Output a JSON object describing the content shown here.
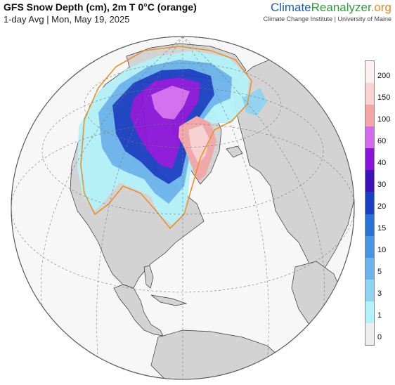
{
  "header": {
    "title": "GFS Snow Depth (cm), 2m T 0°C (orange)",
    "subtitle": "1-day Avg | Mon, May 19, 2025"
  },
  "brand": {
    "name_part1": "Climate",
    "name_part2": "Reanalyzer",
    "name_part3": ".org",
    "institution": "Climate Change Institute | University of Maine"
  },
  "legend": {
    "bins": [
      {
        "label": "0",
        "color": "#eeeeee"
      },
      {
        "label": "1",
        "color": "#b3f2f8"
      },
      {
        "label": "3",
        "color": "#8fd4f2"
      },
      {
        "label": "5",
        "color": "#6bb5ec"
      },
      {
        "label": "10",
        "color": "#4795e4"
      },
      {
        "label": "15",
        "color": "#2a71d6"
      },
      {
        "label": "20",
        "color": "#1a3fc2"
      },
      {
        "label": "30",
        "color": "#3d12b8"
      },
      {
        "label": "40",
        "color": "#8a14d8"
      },
      {
        "label": "60",
        "color": "#d36aee"
      },
      {
        "label": "100",
        "color": "#f3a6a6"
      },
      {
        "label": "150",
        "color": "#f9d2d2"
      },
      {
        "label": "200",
        "color": "#fdf0f0"
      }
    ]
  },
  "map": {
    "projection": "orthographic (North Atlantic / Arctic view)",
    "ocean_color": "#f7f7f7",
    "land_color": "#d3d3d3",
    "freezing_line_color": "#e8912c"
  }
}
